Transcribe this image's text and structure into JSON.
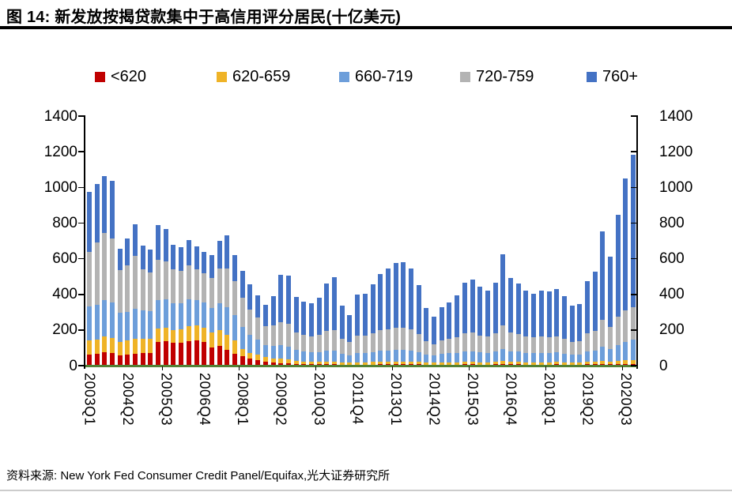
{
  "title": "图 14: 新发放按揭贷款集中于高信用评分居民(十亿美元)",
  "source": "资料来源: New York Fed Consumer Credit Panel/Equifax,光大证券研究所",
  "chart_data": {
    "type": "bar",
    "stacked": true,
    "title": "新发放按揭贷款集中于高信用评分居民(十亿美元)",
    "xlabel": "",
    "ylabel": "",
    "ylim": [
      0,
      1400
    ],
    "yticks": [
      0,
      200,
      400,
      600,
      800,
      1000,
      1200,
      1400
    ],
    "grid": false,
    "legend_position": "top",
    "baseline_color": "#538135",
    "x": [
      "2003Q1",
      "2003Q2",
      "2003Q3",
      "2003Q4",
      "2004Q1",
      "2004Q2",
      "2004Q3",
      "2004Q4",
      "2005Q1",
      "2005Q2",
      "2005Q3",
      "2005Q4",
      "2006Q1",
      "2006Q2",
      "2006Q3",
      "2006Q4",
      "2007Q1",
      "2007Q2",
      "2007Q3",
      "2007Q4",
      "2008Q1",
      "2008Q2",
      "2008Q3",
      "2008Q4",
      "2009Q1",
      "2009Q2",
      "2009Q3",
      "2009Q4",
      "2010Q1",
      "2010Q2",
      "2010Q3",
      "2010Q4",
      "2011Q1",
      "2011Q2",
      "2011Q3",
      "2011Q4",
      "2012Q1",
      "2012Q2",
      "2012Q3",
      "2012Q4",
      "2013Q1",
      "2013Q2",
      "2013Q3",
      "2013Q4",
      "2014Q1",
      "2014Q2",
      "2014Q3",
      "2014Q4",
      "2015Q1",
      "2015Q2",
      "2015Q3",
      "2015Q4",
      "2016Q1",
      "2016Q2",
      "2016Q3",
      "2016Q4",
      "2017Q1",
      "2017Q2",
      "2017Q3",
      "2017Q4",
      "2018Q1",
      "2018Q2",
      "2018Q3",
      "2018Q4",
      "2019Q1",
      "2019Q2",
      "2019Q3",
      "2019Q4",
      "2020Q1",
      "2020Q2",
      "2020Q3",
      "2020Q4"
    ],
    "x_tick_labels_shown": [
      "2003Q1",
      "2004Q2",
      "2005Q3",
      "2006Q4",
      "2008Q1",
      "2009Q2",
      "2010Q3",
      "2011Q4",
      "2013Q1",
      "2014Q2",
      "2015Q3",
      "2016Q4",
      "2018Q1",
      "2019Q2",
      "2020Q3"
    ],
    "x_tick_label_every_n_quarters": 5,
    "series": [
      {
        "name": "<620",
        "color": "#c00000",
        "values": [
          62,
          65,
          75,
          70,
          57,
          60,
          65,
          70,
          72,
          134,
          139,
          130,
          127,
          139,
          142,
          134,
          104,
          112,
          90,
          67,
          55,
          38,
          30,
          22,
          18,
          15,
          13,
          10,
          8,
          8,
          7,
          7,
          7,
          6,
          5,
          6,
          6,
          6,
          7,
          7,
          7,
          7,
          7,
          7,
          6,
          5,
          6,
          6,
          6,
          7,
          7,
          6,
          6,
          7,
          8,
          7,
          7,
          6,
          6,
          6,
          6,
          7,
          6,
          6,
          6,
          7,
          7,
          8,
          7,
          8,
          9,
          10
        ]
      },
      {
        "name": "620-659",
        "color": "#efb327",
        "values": [
          80,
          82,
          90,
          85,
          78,
          80,
          85,
          80,
          78,
          75,
          74,
          70,
          75,
          82,
          82,
          79,
          82,
          87,
          82,
          75,
          39,
          33,
          30,
          25,
          22,
          25,
          22,
          18,
          16,
          15,
          15,
          16,
          16,
          13,
          12,
          14,
          14,
          15,
          16,
          16,
          17,
          17,
          16,
          15,
          12,
          11,
          12,
          13,
          14,
          15,
          15,
          14,
          14,
          15,
          17,
          15,
          15,
          14,
          14,
          14,
          14,
          14,
          13,
          12,
          12,
          15,
          16,
          18,
          16,
          18,
          20,
          22
        ]
      },
      {
        "name": "660-719",
        "color": "#6d9eda",
        "values": [
          190,
          195,
          205,
          200,
          161,
          160,
          170,
          160,
          155,
          160,
          158,
          150,
          148,
          150,
          145,
          140,
          138,
          150,
          155,
          140,
          122,
          100,
          85,
          70,
          70,
          75,
          72,
          60,
          55,
          52,
          55,
          60,
          62,
          48,
          42,
          52,
          52,
          55,
          60,
          62,
          65,
          65,
          62,
          55,
          45,
          40,
          48,
          50,
          52,
          58,
          60,
          55,
          52,
          58,
          70,
          60,
          57,
          52,
          50,
          52,
          52,
          53,
          48,
          45,
          45,
          58,
          62,
          80,
          68,
          90,
          105,
          115
        ]
      },
      {
        "name": "720-759",
        "color": "#b3b3b3",
        "values": [
          305,
          350,
          375,
          360,
          239,
          264,
          296,
          232,
          217,
          225,
          214,
          190,
          180,
          190,
          171,
          165,
          170,
          195,
          220,
          190,
          165,
          145,
          125,
          105,
          115,
          130,
          128,
          100,
          95,
          90,
          95,
          110,
          115,
          85,
          72,
          95,
          95,
          105,
          115,
          120,
          125,
          125,
          118,
          100,
          75,
          65,
          78,
          82,
          88,
          100,
          102,
          95,
          90,
          100,
          130,
          105,
          98,
          90,
          88,
          90,
          88,
          92,
          85,
          72,
          75,
          100,
          110,
          150,
          125,
          160,
          175,
          180
        ]
      },
      {
        "name": "760+",
        "color": "#4472c4",
        "values": [
          338,
          328,
          320,
          320,
          120,
          151,
          179,
          133,
          128,
          196,
          180,
          140,
          135,
          144,
          130,
          122,
          126,
          156,
          183,
          148,
          149,
          139,
          125,
          118,
          165,
          265,
          270,
          197,
          186,
          185,
          210,
          267,
          295,
          185,
          151,
          233,
          238,
          274,
          315,
          342,
          363,
          368,
          342,
          273,
          187,
          155,
          184,
          202,
          236,
          287,
          297,
          274,
          260,
          287,
          400,
          305,
          285,
          260,
          246,
          260,
          255,
          264,
          238,
          203,
          206,
          294,
          333,
          496,
          396,
          570,
          740,
          855
        ]
      }
    ]
  }
}
